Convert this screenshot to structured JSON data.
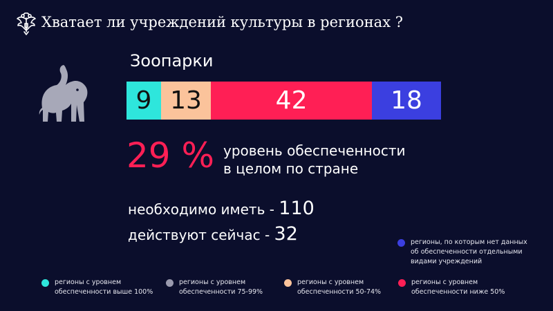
{
  "header": {
    "title": "Хватает ли учреждений культуры в регионах ?",
    "emblem_icon": "double-headed-eagle-icon"
  },
  "category": {
    "label": "Зоопарки",
    "icon": "elephant-icon"
  },
  "chart_data": {
    "type": "bar",
    "orientation": "horizontal-stacked",
    "categories": [
      "Зоопарки"
    ],
    "series": [
      {
        "name": "регионы с уровнем обеспеченности выше 100%",
        "values": [
          9
        ],
        "color": "#2ee6dc"
      },
      {
        "name": "регионы с уровнем обеспеченности 50-74%",
        "values": [
          13
        ],
        "color": "#fbc39b"
      },
      {
        "name": "регионы с уровнем обеспеченности ниже 50%",
        "values": [
          42
        ],
        "color": "#ff1f55"
      },
      {
        "name": "регионы, по которым нет данных об обеспеченности отдельными видами учреждений",
        "values": [
          18
        ],
        "color": "#3b3fe0"
      }
    ]
  },
  "coverage": {
    "value": "29 %",
    "desc_line1": "уровень обеспеченности",
    "desc_line2": "в целом по стране"
  },
  "stats": {
    "needed_label": "необходимо иметь - ",
    "needed_value": "110",
    "current_label": "действуют сейчас - ",
    "current_value": "32"
  },
  "legend": {
    "nodata": {
      "color": "#3b3fe0",
      "line1": "регионы, по которым нет данных",
      "line2": "об обеспеченности отдельными",
      "line3": "видами учреждений"
    },
    "items": [
      {
        "color": "#2ee6dc",
        "line1": "регионы с уровнем",
        "line2": "обеспеченности выше 100%"
      },
      {
        "color": "#9a9aae",
        "line1": "регионы с уровнем",
        "line2": "обеспеченности 75-99%"
      },
      {
        "color": "#fbc39b",
        "line1": "регионы с уровнем",
        "line2": "обеспеченности 50-74%"
      },
      {
        "color": "#ff1f55",
        "line1": "регионы с уровнем",
        "line2": "обеспеченности ниже 50%"
      }
    ]
  }
}
